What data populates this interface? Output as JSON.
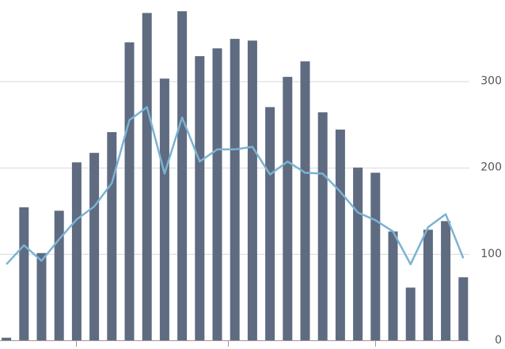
{
  "chart_data": {
    "type": "bar-line",
    "categories": [
      null,
      null,
      null,
      null,
      null,
      null,
      null,
      null,
      null,
      null,
      null,
      null,
      null,
      null,
      null,
      null,
      null,
      null,
      null,
      null,
      null,
      null,
      null,
      null,
      null,
      null,
      null
    ],
    "series": [
      {
        "type": "bar",
        "color": "#5f6b80",
        "values": [
          3,
          154,
          101,
          150,
          206,
          217,
          241,
          345,
          379,
          303,
          381,
          329,
          338,
          349,
          347,
          270,
          305,
          323,
          264,
          244,
          200,
          194,
          126,
          61,
          128,
          138,
          73
        ]
      },
      {
        "type": "line",
        "color": "#7ab3d3",
        "values": [
          88,
          110,
          92,
          117,
          140,
          155,
          182,
          255,
          270,
          193,
          258,
          207,
          221,
          221,
          224,
          192,
          207,
          194,
          193,
          172,
          148,
          139,
          126,
          88,
          131,
          146,
          95
        ]
      }
    ],
    "ylim": [
      0,
      394
    ],
    "yticks": [
      0,
      100,
      200,
      300
    ],
    "grid": true,
    "y_axis_side": "right"
  }
}
